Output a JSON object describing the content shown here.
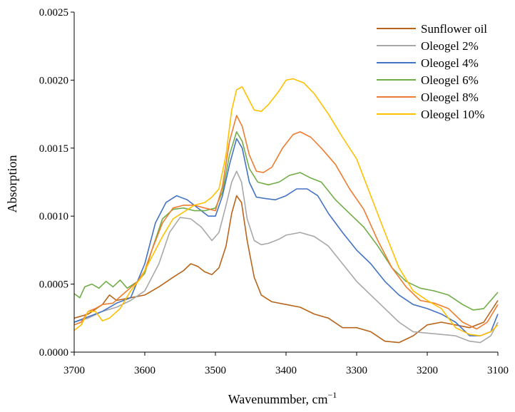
{
  "chart_data": {
    "type": "line",
    "xlabel": "Wavenummber, cm",
    "xlabel_sup": "−1",
    "ylabel": "Absorption",
    "xlim": [
      3700,
      3100
    ],
    "ylim": [
      0,
      0.0025
    ],
    "x_reversed": true,
    "xticks": [
      3700,
      3600,
      3500,
      3400,
      3300,
      3200,
      3100
    ],
    "yticks": [
      0,
      0.0005,
      0.001,
      0.0015,
      0.002,
      0.0025
    ],
    "ytick_labels": [
      "0.0000",
      "0.0005",
      "0.0010",
      "0.0015",
      "0.0020",
      "0.0025"
    ],
    "grid": false,
    "legend_position": "top-right",
    "series": [
      {
        "name": "Sunflower oil",
        "color": "#b8651b",
        "points": [
          [
            3700,
            0.00025
          ],
          [
            3680,
            0.00028
          ],
          [
            3660,
            0.00035
          ],
          [
            3650,
            0.00042
          ],
          [
            3640,
            0.00038
          ],
          [
            3620,
            0.0004
          ],
          [
            3600,
            0.00042
          ],
          [
            3580,
            0.00048
          ],
          [
            3560,
            0.00055
          ],
          [
            3545,
            0.0006
          ],
          [
            3535,
            0.00065
          ],
          [
            3525,
            0.00063
          ],
          [
            3515,
            0.00059
          ],
          [
            3505,
            0.00057
          ],
          [
            3495,
            0.00062
          ],
          [
            3485,
            0.00078
          ],
          [
            3477,
            0.00102
          ],
          [
            3470,
            0.00115
          ],
          [
            3463,
            0.0011
          ],
          [
            3455,
            0.00082
          ],
          [
            3445,
            0.00055
          ],
          [
            3435,
            0.00042
          ],
          [
            3420,
            0.00037
          ],
          [
            3400,
            0.00035
          ],
          [
            3380,
            0.00033
          ],
          [
            3360,
            0.00028
          ],
          [
            3340,
            0.00025
          ],
          [
            3320,
            0.00018
          ],
          [
            3300,
            0.00018
          ],
          [
            3280,
            0.00015
          ],
          [
            3260,
            8e-05
          ],
          [
            3240,
            7e-05
          ],
          [
            3220,
            0.00012
          ],
          [
            3200,
            0.0002
          ],
          [
            3180,
            0.00022
          ],
          [
            3160,
            0.0002
          ],
          [
            3140,
            0.00018
          ],
          [
            3120,
            0.00022
          ],
          [
            3100,
            0.00038
          ]
        ]
      },
      {
        "name": "Oleogel 2%",
        "color": "#a8a8a8",
        "points": [
          [
            3700,
            0.00022
          ],
          [
            3680,
            0.00025
          ],
          [
            3660,
            0.0003
          ],
          [
            3640,
            0.00033
          ],
          [
            3620,
            0.00038
          ],
          [
            3600,
            0.00045
          ],
          [
            3580,
            0.00065
          ],
          [
            3565,
            0.00088
          ],
          [
            3550,
            0.00099
          ],
          [
            3535,
            0.00098
          ],
          [
            3520,
            0.00092
          ],
          [
            3505,
            0.00082
          ],
          [
            3495,
            0.00088
          ],
          [
            3485,
            0.00108
          ],
          [
            3477,
            0.00125
          ],
          [
            3470,
            0.00133
          ],
          [
            3463,
            0.00125
          ],
          [
            3455,
            0.00098
          ],
          [
            3445,
            0.00082
          ],
          [
            3435,
            0.00079
          ],
          [
            3425,
            0.0008
          ],
          [
            3410,
            0.00083
          ],
          [
            3400,
            0.00086
          ],
          [
            3380,
            0.00088
          ],
          [
            3360,
            0.00085
          ],
          [
            3340,
            0.00078
          ],
          [
            3320,
            0.00065
          ],
          [
            3300,
            0.00052
          ],
          [
            3280,
            0.00042
          ],
          [
            3260,
            0.00032
          ],
          [
            3240,
            0.00022
          ],
          [
            3220,
            0.00015
          ],
          [
            3200,
            0.00014
          ],
          [
            3180,
            0.00013
          ],
          [
            3160,
            0.00012
          ],
          [
            3140,
            8e-05
          ],
          [
            3125,
            7e-05
          ],
          [
            3110,
            0.00012
          ],
          [
            3100,
            0.00022
          ]
        ]
      },
      {
        "name": "Oleogel 4%",
        "color": "#4472c4",
        "points": [
          [
            3700,
            0.00022
          ],
          [
            3680,
            0.00026
          ],
          [
            3660,
            0.0003
          ],
          [
            3640,
            0.00036
          ],
          [
            3620,
            0.0004
          ],
          [
            3600,
            0.00065
          ],
          [
            3585,
            0.00095
          ],
          [
            3570,
            0.0011
          ],
          [
            3555,
            0.00115
          ],
          [
            3540,
            0.00112
          ],
          [
            3525,
            0.00106
          ],
          [
            3510,
            0.001
          ],
          [
            3500,
            0.001
          ],
          [
            3490,
            0.00115
          ],
          [
            3480,
            0.00138
          ],
          [
            3470,
            0.00157
          ],
          [
            3462,
            0.0015
          ],
          [
            3452,
            0.00125
          ],
          [
            3442,
            0.00114
          ],
          [
            3430,
            0.00113
          ],
          [
            3415,
            0.00112
          ],
          [
            3400,
            0.00115
          ],
          [
            3385,
            0.0012
          ],
          [
            3370,
            0.0012
          ],
          [
            3355,
            0.00115
          ],
          [
            3340,
            0.00102
          ],
          [
            3320,
            0.00088
          ],
          [
            3300,
            0.00075
          ],
          [
            3280,
            0.00065
          ],
          [
            3260,
            0.00052
          ],
          [
            3240,
            0.00042
          ],
          [
            3220,
            0.00035
          ],
          [
            3200,
            0.00032
          ],
          [
            3180,
            0.00028
          ],
          [
            3160,
            0.00022
          ],
          [
            3140,
            0.00012
          ],
          [
            3125,
            0.00012
          ],
          [
            3110,
            0.00015
          ],
          [
            3100,
            0.00028
          ]
        ]
      },
      {
        "name": "Oleogel 6%",
        "color": "#70ad47",
        "points": [
          [
            3700,
            0.00043
          ],
          [
            3692,
            0.0004
          ],
          [
            3685,
            0.00048
          ],
          [
            3675,
            0.0005
          ],
          [
            3665,
            0.00047
          ],
          [
            3655,
            0.00052
          ],
          [
            3645,
            0.00048
          ],
          [
            3635,
            0.00053
          ],
          [
            3625,
            0.00047
          ],
          [
            3610,
            0.00052
          ],
          [
            3600,
            0.00058
          ],
          [
            3590,
            0.00075
          ],
          [
            3575,
            0.00098
          ],
          [
            3560,
            0.00105
          ],
          [
            3545,
            0.00106
          ],
          [
            3530,
            0.00104
          ],
          [
            3515,
            0.00104
          ],
          [
            3500,
            0.00106
          ],
          [
            3490,
            0.00118
          ],
          [
            3480,
            0.00145
          ],
          [
            3470,
            0.00162
          ],
          [
            3462,
            0.00155
          ],
          [
            3452,
            0.00135
          ],
          [
            3440,
            0.00125
          ],
          [
            3425,
            0.00123
          ],
          [
            3410,
            0.00125
          ],
          [
            3395,
            0.0013
          ],
          [
            3380,
            0.00132
          ],
          [
            3365,
            0.00128
          ],
          [
            3350,
            0.00125
          ],
          [
            3330,
            0.00112
          ],
          [
            3310,
            0.00102
          ],
          [
            3290,
            0.00092
          ],
          [
            3270,
            0.00078
          ],
          [
            3250,
            0.00062
          ],
          [
            3230,
            0.00052
          ],
          [
            3210,
            0.00047
          ],
          [
            3190,
            0.00045
          ],
          [
            3170,
            0.00042
          ],
          [
            3150,
            0.00035
          ],
          [
            3135,
            0.00031
          ],
          [
            3120,
            0.00032
          ],
          [
            3100,
            0.00044
          ]
        ]
      },
      {
        "name": "Oleogel 8%",
        "color": "#ed7d31",
        "points": [
          [
            3700,
            0.0002
          ],
          [
            3690,
            0.00022
          ],
          [
            3680,
            0.0003
          ],
          [
            3670,
            0.00032
          ],
          [
            3660,
            0.00035
          ],
          [
            3645,
            0.00036
          ],
          [
            3630,
            0.00043
          ],
          [
            3610,
            0.00052
          ],
          [
            3600,
            0.0006
          ],
          [
            3590,
            0.00075
          ],
          [
            3575,
            0.00095
          ],
          [
            3560,
            0.00106
          ],
          [
            3545,
            0.00108
          ],
          [
            3530,
            0.00108
          ],
          [
            3515,
            0.00106
          ],
          [
            3500,
            0.00104
          ],
          [
            3490,
            0.00122
          ],
          [
            3480,
            0.00155
          ],
          [
            3470,
            0.00174
          ],
          [
            3462,
            0.00166
          ],
          [
            3452,
            0.00145
          ],
          [
            3442,
            0.00133
          ],
          [
            3432,
            0.00132
          ],
          [
            3420,
            0.00136
          ],
          [
            3405,
            0.0015
          ],
          [
            3390,
            0.0016
          ],
          [
            3380,
            0.00162
          ],
          [
            3365,
            0.00158
          ],
          [
            3350,
            0.0015
          ],
          [
            3330,
            0.00138
          ],
          [
            3310,
            0.0012
          ],
          [
            3290,
            0.00105
          ],
          [
            3270,
            0.00082
          ],
          [
            3250,
            0.00062
          ],
          [
            3230,
            0.00048
          ],
          [
            3210,
            0.00038
          ],
          [
            3190,
            0.00036
          ],
          [
            3170,
            0.00032
          ],
          [
            3150,
            0.00022
          ],
          [
            3130,
            0.00017
          ],
          [
            3115,
            0.00022
          ],
          [
            3100,
            0.00035
          ]
        ]
      },
      {
        "name": "Oleogel 10%",
        "color": "#ffc000",
        "points": [
          [
            3700,
            0.00016
          ],
          [
            3690,
            0.0002
          ],
          [
            3680,
            0.0003
          ],
          [
            3670,
            0.0003
          ],
          [
            3660,
            0.00023
          ],
          [
            3650,
            0.00025
          ],
          [
            3635,
            0.00032
          ],
          [
            3620,
            0.00045
          ],
          [
            3605,
            0.00055
          ],
          [
            3590,
            0.0007
          ],
          [
            3575,
            0.00085
          ],
          [
            3560,
            0.00098
          ],
          [
            3545,
            0.00103
          ],
          [
            3530,
            0.00108
          ],
          [
            3515,
            0.0011
          ],
          [
            3505,
            0.00114
          ],
          [
            3495,
            0.0012
          ],
          [
            3485,
            0.00145
          ],
          [
            3477,
            0.00178
          ],
          [
            3470,
            0.00193
          ],
          [
            3462,
            0.00195
          ],
          [
            3455,
            0.00188
          ],
          [
            3445,
            0.00178
          ],
          [
            3435,
            0.00177
          ],
          [
            3425,
            0.00182
          ],
          [
            3410,
            0.00192
          ],
          [
            3400,
            0.002
          ],
          [
            3390,
            0.00201
          ],
          [
            3375,
            0.00198
          ],
          [
            3360,
            0.0019
          ],
          [
            3340,
            0.00175
          ],
          [
            3320,
            0.00158
          ],
          [
            3300,
            0.00142
          ],
          [
            3280,
            0.00115
          ],
          [
            3260,
            0.00088
          ],
          [
            3240,
            0.00062
          ],
          [
            3220,
            0.00045
          ],
          [
            3200,
            0.00038
          ],
          [
            3180,
            0.00032
          ],
          [
            3160,
            0.00018
          ],
          [
            3140,
            0.00013
          ],
          [
            3125,
            0.00012
          ],
          [
            3110,
            0.00015
          ],
          [
            3100,
            0.0002
          ]
        ]
      }
    ]
  }
}
